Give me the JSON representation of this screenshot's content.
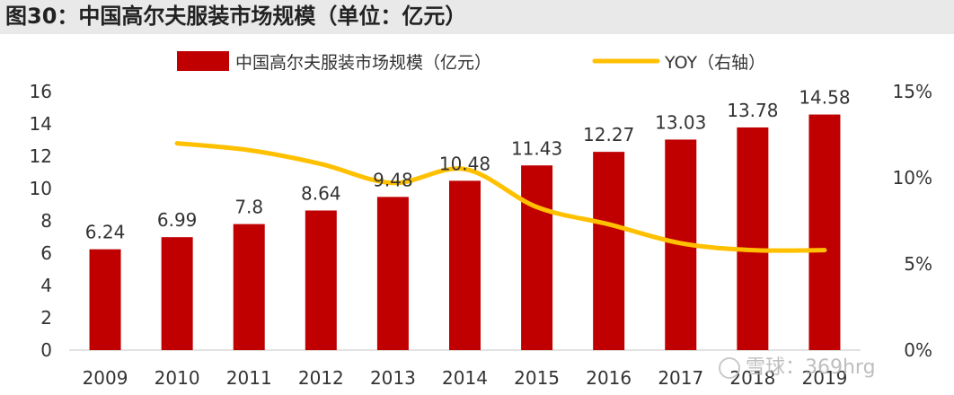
{
  "title": "图30：中国高尔夫服装市场规模（单位：亿元）",
  "watermark": "雪球：369hrg",
  "colors": {
    "bar": "#c00000",
    "line": "#ffc000",
    "axis": "#d9d9d9",
    "text": "#333333"
  },
  "chart_data": {
    "type": "bar",
    "title": "图30：中国高尔夫服装市场规模（单位：亿元）",
    "categories": [
      "2009",
      "2010",
      "2011",
      "2012",
      "2013",
      "2014",
      "2015",
      "2016",
      "2017",
      "2018",
      "2019"
    ],
    "series": [
      {
        "name": "中国高尔夫服装市场规模（亿元）",
        "type": "bar",
        "axis": "left",
        "values": [
          6.24,
          6.99,
          7.8,
          8.64,
          9.48,
          10.48,
          11.43,
          12.27,
          13.03,
          13.78,
          14.58
        ],
        "labels": [
          "6.24",
          "6.99",
          "7.8",
          "8.64",
          "9.48",
          "10.48",
          "11.43",
          "12.27",
          "13.03",
          "13.78",
          "14.58"
        ]
      },
      {
        "name": "YOY（右轴）",
        "type": "line",
        "axis": "right",
        "values": [
          null,
          12.0,
          11.6,
          10.8,
          9.7,
          10.5,
          8.3,
          7.3,
          6.2,
          5.8,
          5.8
        ]
      }
    ],
    "y_left": {
      "min": 0,
      "max": 16,
      "ticks": [
        "0",
        "2",
        "4",
        "6",
        "8",
        "10",
        "12",
        "14",
        "16"
      ]
    },
    "y_right": {
      "min": 0,
      "max": 15,
      "ticks": [
        "0%",
        "5%",
        "10%",
        "15%"
      ]
    },
    "legend": [
      "中国高尔夫服装市场规模（亿元）",
      "YOY（右轴）"
    ],
    "legend_position": "top-center",
    "grid": false
  }
}
